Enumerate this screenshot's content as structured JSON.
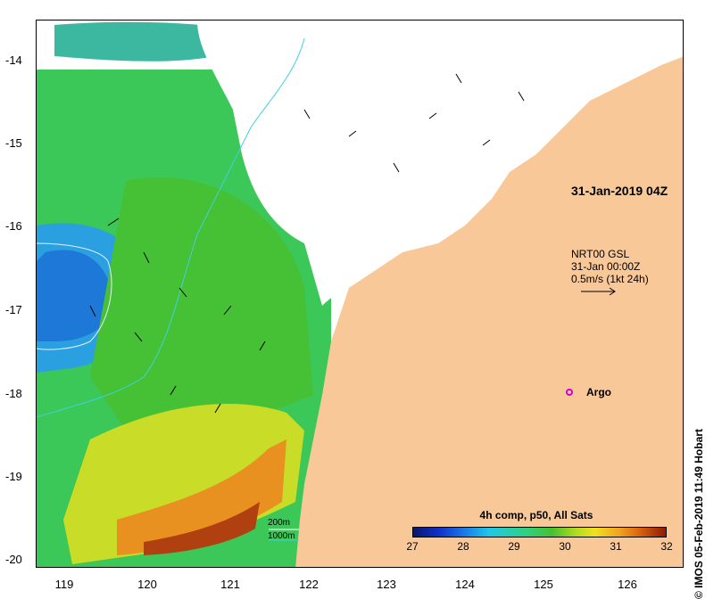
{
  "map": {
    "timestamp": "31-Jan-2019 04Z",
    "current_source": {
      "line1": "NRT00 GSL",
      "line2": "31-Jan 00:00Z",
      "line3": "0.5m/s (1kt 24h)"
    },
    "argo_label": "Argo",
    "argo_color": "#d400d4",
    "land_color": "#f9c898",
    "y_axis_labels": [
      "-14",
      "-15",
      "-16",
      "-17",
      "-18",
      "-19",
      "-20"
    ],
    "x_axis_labels": [
      "119",
      "120",
      "121",
      "122",
      "123",
      "124",
      "125",
      "126"
    ],
    "depth_contours": {
      "c200": "200m",
      "c1000": "1000m",
      "color": "#40d0e0"
    },
    "colorbar": {
      "title": "4h comp, p50, All Sats",
      "ticks": [
        "27",
        "28",
        "29",
        "30",
        "31",
        "32"
      ]
    },
    "credit": "© IMOS 05-Feb-2019 11:49 Hobart"
  }
}
